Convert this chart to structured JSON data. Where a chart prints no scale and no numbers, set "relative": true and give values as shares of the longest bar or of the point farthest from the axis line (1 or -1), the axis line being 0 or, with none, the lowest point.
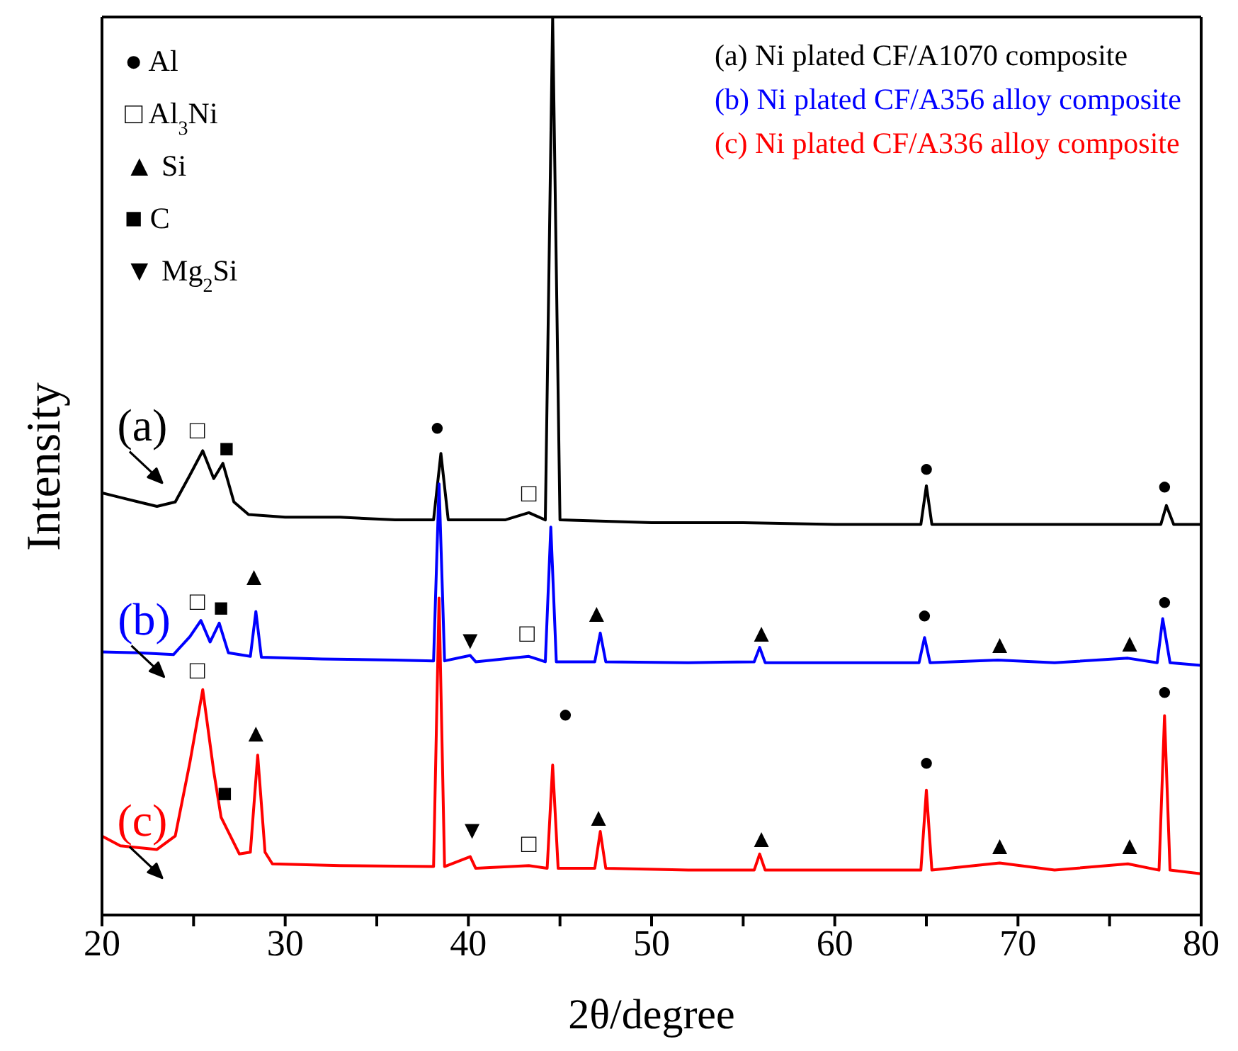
{
  "chart_data": {
    "type": "line",
    "relative": true,
    "xlabel": "2θ/degree",
    "ylabel": "Intensity",
    "xlim": [
      20,
      80
    ],
    "xticks": [
      20,
      {
        "value": 25,
        "label": null
      },
      30,
      {
        "value": 35,
        "label": null
      },
      40,
      {
        "value": 45,
        "label": null
      },
      50,
      {
        "value": 55,
        "label": null
      },
      60,
      {
        "value": 65,
        "label": null
      },
      70,
      {
        "value": 75,
        "label": null
      },
      80
    ],
    "legend": "top right",
    "marker": "none",
    "line_style": "solid",
    "series": [
      {
        "name": "(a) Ni plated CF/A1070 composite",
        "color": "#000000",
        "x": [
          20,
          21,
          22,
          23,
          24,
          24.8,
          25.5,
          26.1,
          26.6,
          27.2,
          28,
          30,
          33,
          36,
          38.1,
          38.5,
          38.9,
          42,
          43.3,
          44.2,
          44.6,
          45,
          50,
          55,
          60,
          64.7,
          65,
          65.3,
          70,
          77.8,
          78.1,
          78.5,
          80
        ],
        "values": [
          0.47,
          0.465,
          0.46,
          0.455,
          0.46,
          0.49,
          0.517,
          0.486,
          0.503,
          0.46,
          0.446,
          0.443,
          0.443,
          0.44,
          0.44,
          0.514,
          0.44,
          0.44,
          0.448,
          0.44,
          1,
          0.44,
          0.437,
          0.437,
          0.435,
          0.435,
          0.478,
          0.435,
          0.435,
          0.435,
          0.456,
          0.435,
          0.435
        ]
      },
      {
        "name": "(b) Ni plated CF/A356 alloy composite",
        "color": "#0000ff",
        "x": [
          20,
          22,
          23.9,
          24.8,
          25.4,
          25.9,
          26.4,
          26.9,
          28.1,
          28.4,
          28.7,
          32,
          36,
          38.1,
          38.4,
          38.7,
          40.1,
          40.4,
          43.3,
          44.2,
          44.5,
          44.8,
          46.9,
          47.2,
          47.5,
          52,
          55.6,
          55.9,
          56.2,
          64.6,
          64.9,
          65.2,
          68.9,
          72,
          76,
          77.6,
          77.9,
          78.3,
          80
        ],
        "values": [
          0.293,
          0.292,
          0.29,
          0.31,
          0.328,
          0.304,
          0.325,
          0.292,
          0.288,
          0.338,
          0.287,
          0.285,
          0.284,
          0.283,
          0.48,
          0.283,
          0.289,
          0.282,
          0.288,
          0.282,
          0.432,
          0.282,
          0.282,
          0.314,
          0.282,
          0.281,
          0.282,
          0.298,
          0.281,
          0.281,
          0.309,
          0.281,
          0.284,
          0.281,
          0.286,
          0.281,
          0.33,
          0.281,
          0.278
        ]
      },
      {
        "name": "(c) Ni plated CF/A336 alloy composite",
        "color": "#ff0000",
        "x": [
          20,
          21,
          23,
          24,
          24.8,
          25.5,
          26.1,
          26.5,
          27.5,
          28.1,
          28.5,
          28.9,
          29.3,
          33,
          38.1,
          38.4,
          38.7,
          40.1,
          40.4,
          43.3,
          44.3,
          44.6,
          44.9,
          46.9,
          47.2,
          47.5,
          52,
          55.6,
          55.9,
          56.2,
          64.7,
          65,
          65.3,
          69,
          72,
          76,
          77.7,
          78,
          78.3,
          80
        ],
        "values": [
          0.088,
          0.077,
          0.073,
          0.088,
          0.17,
          0.251,
          0.16,
          0.109,
          0.068,
          0.07,
          0.178,
          0.07,
          0.057,
          0.055,
          0.054,
          0.353,
          0.054,
          0.065,
          0.052,
          0.055,
          0.052,
          0.167,
          0.052,
          0.052,
          0.093,
          0.052,
          0.05,
          0.05,
          0.068,
          0.05,
          0.05,
          0.139,
          0.05,
          0.058,
          0.05,
          0.057,
          0.05,
          0.222,
          0.05,
          0.046
        ]
      }
    ],
    "annotations": [
      "● Al",
      "□ Al$_{3}$Ni",
      "▲ Si",
      "■ C",
      "▼ Mg$_{2}$Si",
      "(a)",
      "(b)",
      "(c)",
      "□",
      "■",
      "●",
      "□",
      "●",
      "●",
      "□",
      "■",
      "▲",
      "▼",
      "□",
      "▲",
      "▲",
      "●",
      "▲",
      "▲",
      "●",
      "□",
      "■",
      "▲",
      "▼",
      "□",
      "●",
      "▲",
      "▲",
      "●",
      "▲",
      "▲",
      "●"
    ]
  }
}
